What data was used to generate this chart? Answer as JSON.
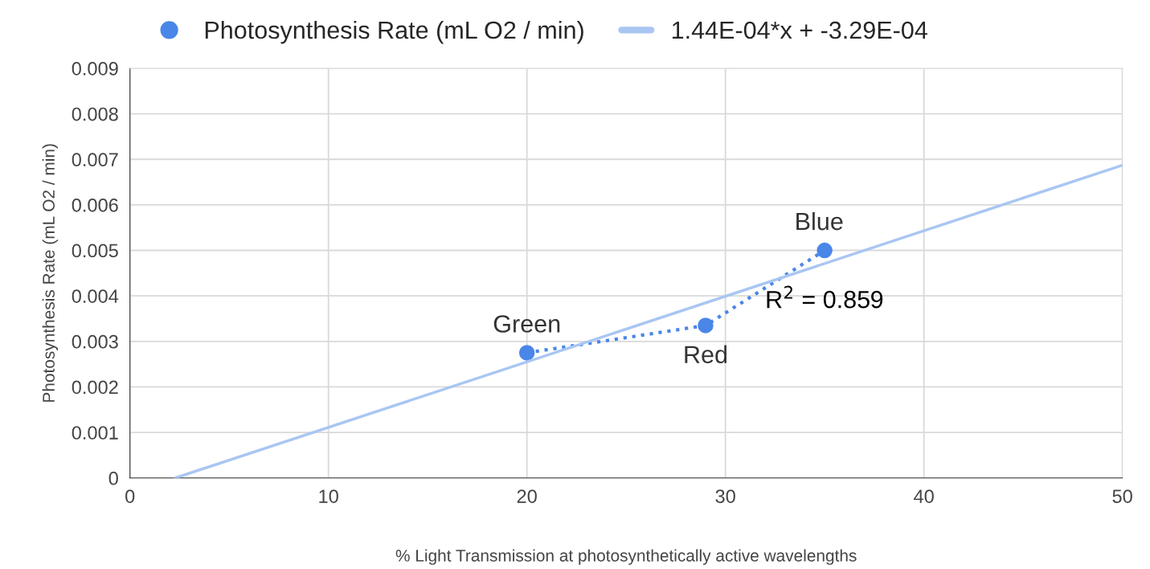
{
  "chart_data": {
    "type": "line",
    "xlabel": "% Light Transmission at photosynthetically active wavelengths",
    "ylabel": "Photosynthesis Rate (mL O2 / min)",
    "xlim": [
      0,
      50
    ],
    "xticks": [
      0,
      10,
      20,
      30,
      40,
      50
    ],
    "ylim": [
      0,
      0.009
    ],
    "yticks": [
      0,
      0.001,
      0.002,
      0.003,
      0.004,
      0.005,
      0.006,
      0.007,
      0.008,
      0.009
    ],
    "grid": true,
    "legend": "top",
    "series": [
      {
        "name": "Photosynthesis Rate (mL O2 / min)",
        "color": "#4a86e8",
        "marker": "circle",
        "line_style": "dotted",
        "x": [
          20,
          29,
          35
        ],
        "values": [
          0.00275,
          0.00335,
          0.005
        ]
      },
      {
        "name": "1.44E-04*x + -3.29E-04",
        "color": "#a9c6f2",
        "marker": "none",
        "line_style": "solid",
        "x": [
          2.28,
          50
        ],
        "values": [
          0,
          0.00687
        ]
      }
    ],
    "annotations": [
      {
        "text": "Green",
        "x": 20,
        "y": 0.00275
      },
      {
        "text": "Red",
        "x": 29,
        "y": 0.00335
      },
      {
        "text": "Blue",
        "x": 35,
        "y": 0.005
      },
      "R$^{2}$ = 0.859"
    ]
  }
}
